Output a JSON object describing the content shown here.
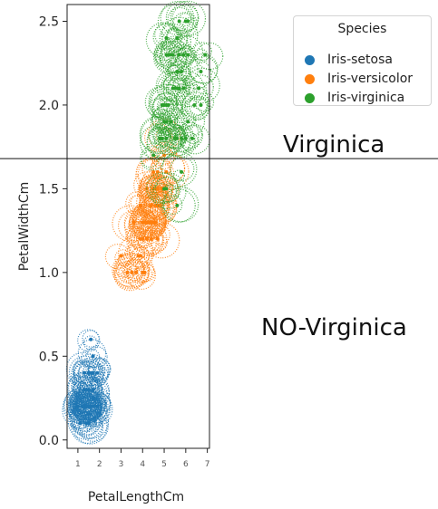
{
  "chart_data": {
    "type": "scatter",
    "title": "",
    "xlabel": "PetalLengthCm",
    "ylabel": "PetalWidthCm",
    "xlim": [
      0.5,
      7.1
    ],
    "ylim": [
      -0.05,
      2.6
    ],
    "x_ticks": [
      "1",
      "2",
      "3",
      "4",
      "5",
      "6",
      "7"
    ],
    "y_ticks": [
      "0.0",
      "0.5",
      "1.0",
      "1.5",
      "2.0",
      "2.5"
    ],
    "legend": {
      "title": "Species",
      "placement": "top-right",
      "items": [
        {
          "label": "Iris-setosa",
          "color": "#1f77b4"
        },
        {
          "label": "Iris-versicolor",
          "color": "#ff7f0e"
        },
        {
          "label": "Iris-virginica",
          "color": "#2ca02c"
        }
      ]
    },
    "series": [
      {
        "name": "Iris-setosa",
        "color": "#1f77b4",
        "points": [
          [
            1.4,
            0.2
          ],
          [
            1.4,
            0.2
          ],
          [
            1.3,
            0.2
          ],
          [
            1.5,
            0.2
          ],
          [
            1.4,
            0.2
          ],
          [
            1.7,
            0.4
          ],
          [
            1.4,
            0.3
          ],
          [
            1.5,
            0.2
          ],
          [
            1.4,
            0.2
          ],
          [
            1.5,
            0.1
          ],
          [
            1.5,
            0.2
          ],
          [
            1.6,
            0.2
          ],
          [
            1.4,
            0.1
          ],
          [
            1.1,
            0.1
          ],
          [
            1.2,
            0.2
          ],
          [
            1.5,
            0.4
          ],
          [
            1.3,
            0.4
          ],
          [
            1.4,
            0.3
          ],
          [
            1.7,
            0.3
          ],
          [
            1.5,
            0.3
          ],
          [
            1.7,
            0.2
          ],
          [
            1.5,
            0.4
          ],
          [
            1.0,
            0.2
          ],
          [
            1.7,
            0.5
          ],
          [
            1.9,
            0.2
          ],
          [
            1.6,
            0.2
          ],
          [
            1.6,
            0.4
          ],
          [
            1.5,
            0.2
          ],
          [
            1.4,
            0.2
          ],
          [
            1.6,
            0.2
          ],
          [
            1.6,
            0.2
          ],
          [
            1.5,
            0.4
          ],
          [
            1.5,
            0.1
          ],
          [
            1.4,
            0.2
          ],
          [
            1.5,
            0.1
          ],
          [
            1.2,
            0.2
          ],
          [
            1.3,
            0.2
          ],
          [
            1.5,
            0.1
          ],
          [
            1.3,
            0.2
          ],
          [
            1.5,
            0.2
          ],
          [
            1.3,
            0.3
          ],
          [
            1.3,
            0.3
          ],
          [
            1.3,
            0.2
          ],
          [
            1.6,
            0.6
          ],
          [
            1.9,
            0.4
          ],
          [
            1.4,
            0.3
          ],
          [
            1.6,
            0.2
          ],
          [
            1.4,
            0.2
          ],
          [
            1.5,
            0.2
          ],
          [
            1.4,
            0.2
          ]
        ]
      },
      {
        "name": "Iris-versicolor",
        "color": "#ff7f0e",
        "points": [
          [
            4.7,
            1.4
          ],
          [
            4.5,
            1.5
          ],
          [
            4.9,
            1.5
          ],
          [
            4.0,
            1.3
          ],
          [
            4.6,
            1.5
          ],
          [
            4.5,
            1.3
          ],
          [
            4.7,
            1.6
          ],
          [
            3.3,
            1.0
          ],
          [
            4.6,
            1.3
          ],
          [
            3.9,
            1.4
          ],
          [
            3.5,
            1.0
          ],
          [
            4.2,
            1.5
          ],
          [
            4.0,
            1.0
          ],
          [
            4.7,
            1.4
          ],
          [
            3.6,
            1.3
          ],
          [
            4.4,
            1.4
          ],
          [
            4.5,
            1.5
          ],
          [
            4.1,
            1.0
          ],
          [
            4.5,
            1.5
          ],
          [
            3.9,
            1.1
          ],
          [
            4.8,
            1.8
          ],
          [
            4.0,
            1.3
          ],
          [
            4.9,
            1.5
          ],
          [
            4.7,
            1.2
          ],
          [
            4.3,
            1.3
          ],
          [
            4.4,
            1.4
          ],
          [
            4.8,
            1.4
          ],
          [
            5.0,
            1.7
          ],
          [
            4.5,
            1.5
          ],
          [
            3.5,
            1.0
          ],
          [
            3.8,
            1.1
          ],
          [
            3.7,
            1.0
          ],
          [
            3.9,
            1.2
          ],
          [
            5.1,
            1.6
          ],
          [
            4.5,
            1.5
          ],
          [
            4.5,
            1.6
          ],
          [
            4.7,
            1.5
          ],
          [
            4.4,
            1.3
          ],
          [
            4.1,
            1.3
          ],
          [
            4.0,
            1.3
          ],
          [
            4.4,
            1.2
          ],
          [
            4.6,
            1.4
          ],
          [
            4.0,
            1.2
          ],
          [
            3.3,
            1.0
          ],
          [
            4.2,
            1.3
          ],
          [
            4.2,
            1.2
          ],
          [
            4.2,
            1.3
          ],
          [
            4.3,
            1.3
          ],
          [
            3.0,
            1.1
          ],
          [
            4.1,
            1.3
          ]
        ]
      },
      {
        "name": "Iris-virginica",
        "color": "#2ca02c",
        "points": [
          [
            6.0,
            2.5
          ],
          [
            5.1,
            1.9
          ],
          [
            5.9,
            2.1
          ],
          [
            5.6,
            1.8
          ],
          [
            5.8,
            2.2
          ],
          [
            6.6,
            2.1
          ],
          [
            4.5,
            1.7
          ],
          [
            6.3,
            1.8
          ],
          [
            5.8,
            1.8
          ],
          [
            6.1,
            2.5
          ],
          [
            5.1,
            2.0
          ],
          [
            5.3,
            1.9
          ],
          [
            5.5,
            2.1
          ],
          [
            5.0,
            2.0
          ],
          [
            5.1,
            2.4
          ],
          [
            5.3,
            2.3
          ],
          [
            5.5,
            1.8
          ],
          [
            6.7,
            2.2
          ],
          [
            6.9,
            2.3
          ],
          [
            5.0,
            1.5
          ],
          [
            5.7,
            2.3
          ],
          [
            4.9,
            2.0
          ],
          [
            6.7,
            2.0
          ],
          [
            4.9,
            1.8
          ],
          [
            5.7,
            2.1
          ],
          [
            6.0,
            1.8
          ],
          [
            4.8,
            1.8
          ],
          [
            4.9,
            1.8
          ],
          [
            5.6,
            2.1
          ],
          [
            5.8,
            1.6
          ],
          [
            6.1,
            1.9
          ],
          [
            6.4,
            2.0
          ],
          [
            5.6,
            2.2
          ],
          [
            5.1,
            1.5
          ],
          [
            5.6,
            1.4
          ],
          [
            6.1,
            2.3
          ],
          [
            5.6,
            2.4
          ],
          [
            5.5,
            1.8
          ],
          [
            4.8,
            1.8
          ],
          [
            5.4,
            2.1
          ],
          [
            5.6,
            2.4
          ],
          [
            5.1,
            2.3
          ],
          [
            5.1,
            1.9
          ],
          [
            5.9,
            2.3
          ],
          [
            5.7,
            2.5
          ],
          [
            5.2,
            2.3
          ],
          [
            5.0,
            1.9
          ],
          [
            5.2,
            2.0
          ],
          [
            5.4,
            2.3
          ],
          [
            5.1,
            1.8
          ]
        ]
      }
    ],
    "annotations": [
      {
        "text": "Virginica",
        "y": 1.68
      },
      {
        "text": "NO-Virginica"
      }
    ]
  }
}
